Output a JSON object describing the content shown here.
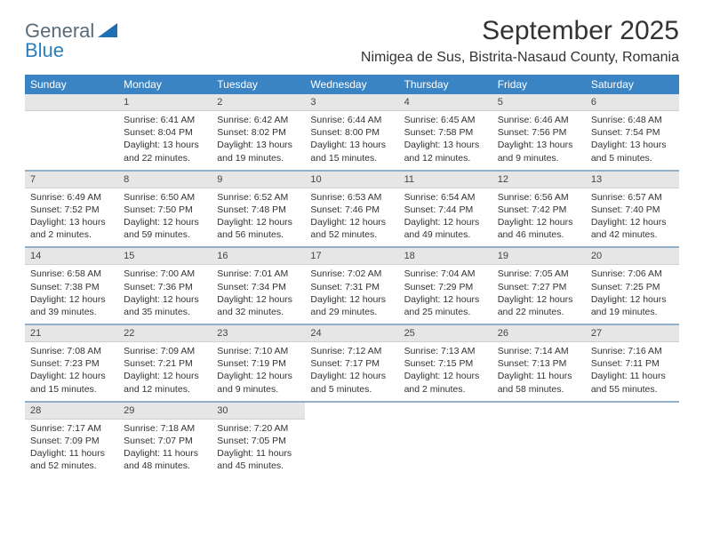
{
  "logo": {
    "text1": "General",
    "text2": "Blue"
  },
  "title": "September 2025",
  "location": "Nimigea de Sus, Bistrita-Nasaud County, Romania",
  "colors": {
    "header_bg": "#3b84c4",
    "header_text": "#ffffff",
    "daynum_bg": "#e6e6e6",
    "separator": "#3b6fa0",
    "body_text": "#333333",
    "logo_gray": "#5a6b78",
    "logo_blue": "#2a7fbf",
    "page_bg": "#ffffff"
  },
  "weekdays": [
    "Sunday",
    "Monday",
    "Tuesday",
    "Wednesday",
    "Thursday",
    "Friday",
    "Saturday"
  ],
  "weeks": [
    [
      {
        "n": "",
        "sr": "",
        "ss": "",
        "dl": ""
      },
      {
        "n": "1",
        "sr": "Sunrise: 6:41 AM",
        "ss": "Sunset: 8:04 PM",
        "dl": "Daylight: 13 hours and 22 minutes."
      },
      {
        "n": "2",
        "sr": "Sunrise: 6:42 AM",
        "ss": "Sunset: 8:02 PM",
        "dl": "Daylight: 13 hours and 19 minutes."
      },
      {
        "n": "3",
        "sr": "Sunrise: 6:44 AM",
        "ss": "Sunset: 8:00 PM",
        "dl": "Daylight: 13 hours and 15 minutes."
      },
      {
        "n": "4",
        "sr": "Sunrise: 6:45 AM",
        "ss": "Sunset: 7:58 PM",
        "dl": "Daylight: 13 hours and 12 minutes."
      },
      {
        "n": "5",
        "sr": "Sunrise: 6:46 AM",
        "ss": "Sunset: 7:56 PM",
        "dl": "Daylight: 13 hours and 9 minutes."
      },
      {
        "n": "6",
        "sr": "Sunrise: 6:48 AM",
        "ss": "Sunset: 7:54 PM",
        "dl": "Daylight: 13 hours and 5 minutes."
      }
    ],
    [
      {
        "n": "7",
        "sr": "Sunrise: 6:49 AM",
        "ss": "Sunset: 7:52 PM",
        "dl": "Daylight: 13 hours and 2 minutes."
      },
      {
        "n": "8",
        "sr": "Sunrise: 6:50 AM",
        "ss": "Sunset: 7:50 PM",
        "dl": "Daylight: 12 hours and 59 minutes."
      },
      {
        "n": "9",
        "sr": "Sunrise: 6:52 AM",
        "ss": "Sunset: 7:48 PM",
        "dl": "Daylight: 12 hours and 56 minutes."
      },
      {
        "n": "10",
        "sr": "Sunrise: 6:53 AM",
        "ss": "Sunset: 7:46 PM",
        "dl": "Daylight: 12 hours and 52 minutes."
      },
      {
        "n": "11",
        "sr": "Sunrise: 6:54 AM",
        "ss": "Sunset: 7:44 PM",
        "dl": "Daylight: 12 hours and 49 minutes."
      },
      {
        "n": "12",
        "sr": "Sunrise: 6:56 AM",
        "ss": "Sunset: 7:42 PM",
        "dl": "Daylight: 12 hours and 46 minutes."
      },
      {
        "n": "13",
        "sr": "Sunrise: 6:57 AM",
        "ss": "Sunset: 7:40 PM",
        "dl": "Daylight: 12 hours and 42 minutes."
      }
    ],
    [
      {
        "n": "14",
        "sr": "Sunrise: 6:58 AM",
        "ss": "Sunset: 7:38 PM",
        "dl": "Daylight: 12 hours and 39 minutes."
      },
      {
        "n": "15",
        "sr": "Sunrise: 7:00 AM",
        "ss": "Sunset: 7:36 PM",
        "dl": "Daylight: 12 hours and 35 minutes."
      },
      {
        "n": "16",
        "sr": "Sunrise: 7:01 AM",
        "ss": "Sunset: 7:34 PM",
        "dl": "Daylight: 12 hours and 32 minutes."
      },
      {
        "n": "17",
        "sr": "Sunrise: 7:02 AM",
        "ss": "Sunset: 7:31 PM",
        "dl": "Daylight: 12 hours and 29 minutes."
      },
      {
        "n": "18",
        "sr": "Sunrise: 7:04 AM",
        "ss": "Sunset: 7:29 PM",
        "dl": "Daylight: 12 hours and 25 minutes."
      },
      {
        "n": "19",
        "sr": "Sunrise: 7:05 AM",
        "ss": "Sunset: 7:27 PM",
        "dl": "Daylight: 12 hours and 22 minutes."
      },
      {
        "n": "20",
        "sr": "Sunrise: 7:06 AM",
        "ss": "Sunset: 7:25 PM",
        "dl": "Daylight: 12 hours and 19 minutes."
      }
    ],
    [
      {
        "n": "21",
        "sr": "Sunrise: 7:08 AM",
        "ss": "Sunset: 7:23 PM",
        "dl": "Daylight: 12 hours and 15 minutes."
      },
      {
        "n": "22",
        "sr": "Sunrise: 7:09 AM",
        "ss": "Sunset: 7:21 PM",
        "dl": "Daylight: 12 hours and 12 minutes."
      },
      {
        "n": "23",
        "sr": "Sunrise: 7:10 AM",
        "ss": "Sunset: 7:19 PM",
        "dl": "Daylight: 12 hours and 9 minutes."
      },
      {
        "n": "24",
        "sr": "Sunrise: 7:12 AM",
        "ss": "Sunset: 7:17 PM",
        "dl": "Daylight: 12 hours and 5 minutes."
      },
      {
        "n": "25",
        "sr": "Sunrise: 7:13 AM",
        "ss": "Sunset: 7:15 PM",
        "dl": "Daylight: 12 hours and 2 minutes."
      },
      {
        "n": "26",
        "sr": "Sunrise: 7:14 AM",
        "ss": "Sunset: 7:13 PM",
        "dl": "Daylight: 11 hours and 58 minutes."
      },
      {
        "n": "27",
        "sr": "Sunrise: 7:16 AM",
        "ss": "Sunset: 7:11 PM",
        "dl": "Daylight: 11 hours and 55 minutes."
      }
    ],
    [
      {
        "n": "28",
        "sr": "Sunrise: 7:17 AM",
        "ss": "Sunset: 7:09 PM",
        "dl": "Daylight: 11 hours and 52 minutes."
      },
      {
        "n": "29",
        "sr": "Sunrise: 7:18 AM",
        "ss": "Sunset: 7:07 PM",
        "dl": "Daylight: 11 hours and 48 minutes."
      },
      {
        "n": "30",
        "sr": "Sunrise: 7:20 AM",
        "ss": "Sunset: 7:05 PM",
        "dl": "Daylight: 11 hours and 45 minutes."
      },
      {
        "n": "",
        "sr": "",
        "ss": "",
        "dl": ""
      },
      {
        "n": "",
        "sr": "",
        "ss": "",
        "dl": ""
      },
      {
        "n": "",
        "sr": "",
        "ss": "",
        "dl": ""
      },
      {
        "n": "",
        "sr": "",
        "ss": "",
        "dl": ""
      }
    ]
  ]
}
